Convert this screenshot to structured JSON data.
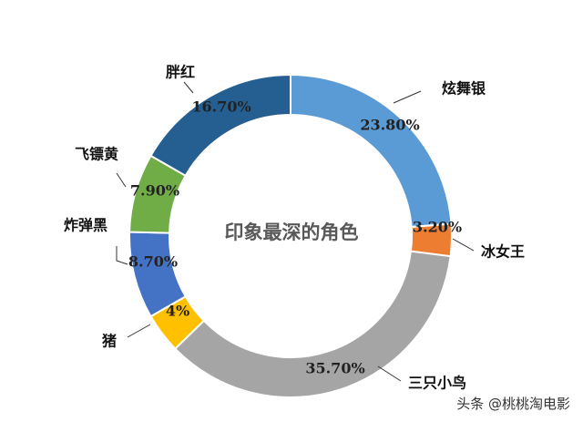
{
  "chart_data": {
    "type": "pie",
    "style": "donut",
    "title": "印象最深的角色",
    "slices": [
      {
        "label": "炫舞银",
        "value": 23.8,
        "value_label": "23.80%",
        "color": "#5b9bd5"
      },
      {
        "label": "冰女王",
        "value": 3.2,
        "value_label": "3.20%",
        "color": "#ed7d31"
      },
      {
        "label": "三只小鸟",
        "value": 35.7,
        "value_label": "35.70%",
        "color": "#a5a5a5"
      },
      {
        "label": "猪",
        "value": 4,
        "value_label": "4%",
        "color": "#ffc000"
      },
      {
        "label": "炸弹黑",
        "value": 8.7,
        "value_label": "8.70%",
        "color": "#4472c4"
      },
      {
        "label": "飞镖黄",
        "value": 7.9,
        "value_label": "7.90%",
        "color": "#70ad47"
      },
      {
        "label": "胖红",
        "value": 16.7,
        "value_label": "16.70%",
        "color": "#255e91"
      }
    ]
  },
  "watermark": "头条 @桃桃淘电影"
}
